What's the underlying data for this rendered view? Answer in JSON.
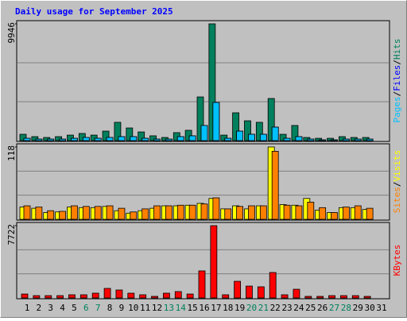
{
  "chart_data": [
    {
      "type": "bar",
      "title": "Daily usage for September 2025",
      "ylim": [
        0,
        9946
      ],
      "yticks": [
        9946
      ],
      "legend_separator": "/",
      "series": [
        {
          "name": "Hits",
          "color": "#00805c",
          "values": [
            540,
            340,
            270,
            340,
            470,
            610,
            470,
            810,
            1560,
            1080,
            740,
            410,
            270,
            680,
            880,
            3720,
            9946,
            470,
            2370,
            1690,
            1560,
            3590,
            540,
            1290,
            270,
            200,
            200,
            340,
            270,
            270,
            0
          ]
        },
        {
          "name": "Files",
          "color": "#0000ff",
          "values": [
            200,
            130,
            130,
            130,
            200,
            270,
            200,
            270,
            340,
            340,
            200,
            130,
            130,
            340,
            410,
            1290,
            3250,
            200,
            810,
            540,
            540,
            1150,
            200,
            340,
            130,
            70,
            70,
            130,
            130,
            130,
            0
          ]
        },
        {
          "name": "Pages",
          "color": "#00c0ff",
          "values": [
            200,
            130,
            130,
            130,
            200,
            270,
            200,
            270,
            340,
            340,
            200,
            130,
            130,
            340,
            410,
            1290,
            3250,
            200,
            810,
            540,
            540,
            1150,
            200,
            340,
            130,
            70,
            70,
            130,
            130,
            130,
            0
          ]
        }
      ]
    },
    {
      "type": "bar",
      "ylim": [
        0,
        118
      ],
      "yticks": [
        118
      ],
      "series": [
        {
          "name": "Visits",
          "color": "#ffff00",
          "values": [
            20,
            18,
            11,
            12,
            20,
            19,
            19,
            21,
            14,
            10,
            14,
            18,
            22,
            22,
            23,
            26,
            34,
            17,
            22,
            17,
            22,
            118,
            24,
            23,
            34,
            15,
            11,
            19,
            19,
            16,
            0
          ]
        },
        {
          "name": "Sites",
          "color": "#ff8000",
          "values": [
            22,
            20,
            14,
            13,
            22,
            21,
            21,
            22,
            18,
            12,
            17,
            22,
            22,
            23,
            23,
            25,
            35,
            17,
            21,
            22,
            22,
            111,
            23,
            22,
            28,
            19,
            11,
            20,
            22,
            18,
            0
          ]
        }
      ]
    },
    {
      "type": "bar",
      "ylim": [
        0,
        7722
      ],
      "yticks": [
        7722
      ],
      "categories": [
        "1",
        "2",
        "3",
        "4",
        "5",
        "6",
        "7",
        "8",
        "9",
        "10",
        "11",
        "12",
        "13",
        "14",
        "15",
        "16",
        "17",
        "18",
        "19",
        "20",
        "21",
        "22",
        "23",
        "24",
        "25",
        "26",
        "27",
        "28",
        "29",
        "30",
        "31"
      ],
      "category_colors": [
        "#000000",
        "#000000",
        "#000000",
        "#000000",
        "#000000",
        "#00805c",
        "#00805c",
        "#000000",
        "#000000",
        "#000000",
        "#000000",
        "#000000",
        "#00805c",
        "#00805c",
        "#000000",
        "#000000",
        "#000000",
        "#000000",
        "#000000",
        "#00805c",
        "#00805c",
        "#000000",
        "#000000",
        "#000000",
        "#000000",
        "#000000",
        "#00805c",
        "#00805c",
        "#000000",
        "#000000",
        "#000000"
      ],
      "series": [
        {
          "name": "KBytes",
          "color": "#ff0000",
          "values": [
            420,
            250,
            250,
            250,
            340,
            340,
            510,
            1020,
            850,
            510,
            340,
            170,
            510,
            680,
            420,
            2890,
            7722,
            340,
            1780,
            1270,
            1190,
            2720,
            340,
            930,
            170,
            170,
            250,
            250,
            250,
            170,
            0
          ]
        }
      ]
    }
  ]
}
